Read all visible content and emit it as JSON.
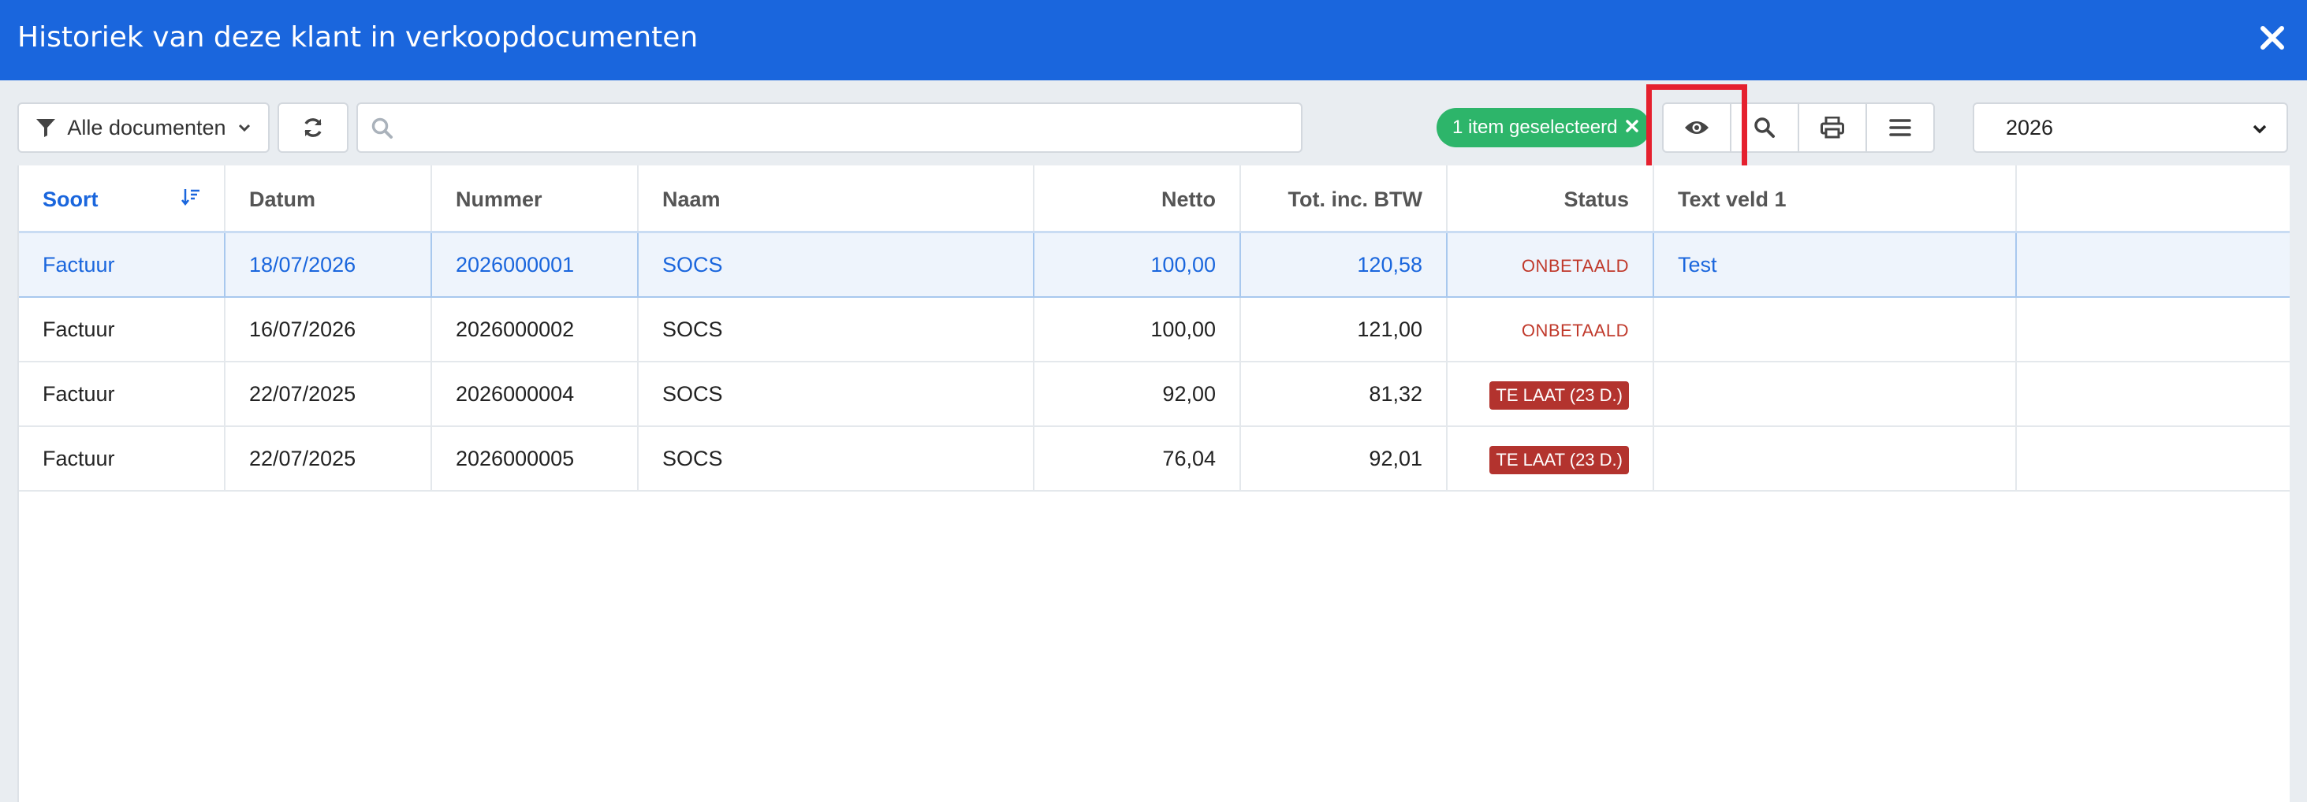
{
  "dialog": {
    "title": "Historiek van deze klant in verkoopdocumenten"
  },
  "toolbar": {
    "filter_label": "Alle documenten",
    "search_placeholder": "",
    "selection_badge": "1 item geselecteerd",
    "year": "2026"
  },
  "table": {
    "headers": {
      "soort": "Soort",
      "datum": "Datum",
      "nummer": "Nummer",
      "naam": "Naam",
      "netto": "Netto",
      "tot": "Tot. inc. BTW",
      "status": "Status",
      "text1": "Text veld 1",
      "extra": ""
    },
    "rows": [
      {
        "soort": "Factuur",
        "datum": "18/07/2026",
        "nummer": "2026000001",
        "naam": "SOCS",
        "netto": "100,00",
        "tot": "120,58",
        "status": "ONBETAALD",
        "text1": "Test"
      },
      {
        "soort": "Factuur",
        "datum": "16/07/2026",
        "nummer": "2026000002",
        "naam": "SOCS",
        "netto": "100,00",
        "tot": "121,00",
        "status": "ONBETAALD",
        "text1": ""
      },
      {
        "soort": "Factuur",
        "datum": "22/07/2025",
        "nummer": "2026000004",
        "naam": "SOCS",
        "netto": "92,00",
        "tot": "81,32",
        "status": "TE LAAT (23 D.)",
        "text1": ""
      },
      {
        "soort": "Factuur",
        "datum": "22/07/2025",
        "nummer": "2026000005",
        "naam": "SOCS",
        "netto": "76,04",
        "tot": "92,01",
        "status": "TE LAAT (23 D.)",
        "text1": ""
      }
    ]
  },
  "colors": {
    "primary": "#1a66dd",
    "success": "#2db56a",
    "danger": "#b3332e",
    "highlight": "#e5202e"
  },
  "icons": {
    "filter": "filter-icon",
    "refresh": "refresh-icon",
    "search": "search-icon",
    "eye": "eye-icon",
    "print": "print-icon",
    "menu": "menu-icon",
    "close": "close-icon"
  }
}
